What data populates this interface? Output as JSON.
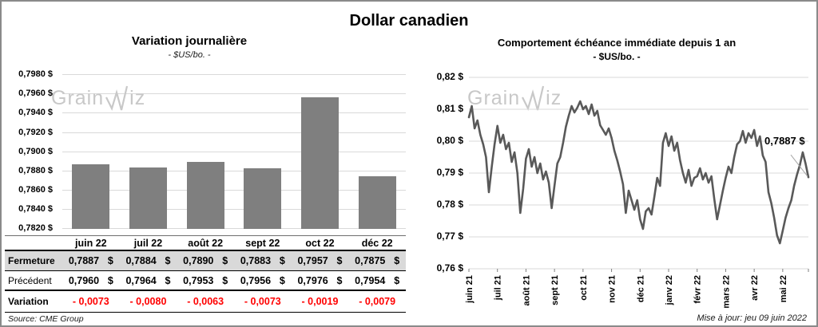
{
  "page": {
    "title": "Dollar canadien",
    "source": "Source: CME Group",
    "updated": "Mise à jour: jeu 09 juin 2022",
    "watermark": {
      "pre": "Grain",
      "post": "iz"
    }
  },
  "chart_data": [
    {
      "id": "variation-journaliere",
      "type": "bar",
      "title": "Variation journalière",
      "subtitle": "- $US/bo. -",
      "ylabel": "$US/bo.",
      "categories": [
        "juin 22",
        "juil 22",
        "août 22",
        "sept 22",
        "oct 22",
        "déc 22"
      ],
      "values": [
        0.7887,
        0.7884,
        0.789,
        0.7883,
        0.7957,
        0.7875
      ],
      "ylim": [
        0.782,
        0.79835
      ],
      "grid": true,
      "y_ticks": [
        {
          "v": 0.798,
          "label": "0,7980 $"
        },
        {
          "v": 0.796,
          "label": "0,7960 $"
        },
        {
          "v": 0.794,
          "label": "0,7940 $"
        },
        {
          "v": 0.792,
          "label": "0,7920 $"
        },
        {
          "v": 0.79,
          "label": "0,7900 $"
        },
        {
          "v": 0.788,
          "label": "0,7880 $"
        },
        {
          "v": 0.786,
          "label": "0,7860 $"
        },
        {
          "v": 0.784,
          "label": "0,7840 $"
        },
        {
          "v": 0.782,
          "label": "0,7820 $"
        }
      ],
      "bar_color": "#7f7f7f",
      "grid_color": "#d9d9d9"
    },
    {
      "id": "comportement-echeance",
      "type": "line",
      "title": "Comportement échéance immédiate depuis 1 an",
      "subtitle": "- $US/bo. -",
      "ylabel": "$US/bo.",
      "ylim": [
        0.76,
        0.8225
      ],
      "grid": true,
      "y_ticks": [
        {
          "v": 0.82,
          "label": "0,82 $"
        },
        {
          "v": 0.81,
          "label": "0,81 $"
        },
        {
          "v": 0.8,
          "label": "0,80 $"
        },
        {
          "v": 0.79,
          "label": "0,79 $"
        },
        {
          "v": 0.78,
          "label": "0,78 $"
        },
        {
          "v": 0.77,
          "label": "0,77 $"
        },
        {
          "v": 0.76,
          "label": "0,76 $"
        }
      ],
      "x_ticks": [
        "juin 21",
        "juil 21",
        "août 21",
        "sept 21",
        "oct 21",
        "nov 21",
        "déc 21",
        "janv 22",
        "févr 22",
        "mars 22",
        "avr 22",
        "mai 22"
      ],
      "points_per_month": 10,
      "values": [
        0.8075,
        0.811,
        0.804,
        0.8065,
        0.802,
        0.799,
        0.795,
        0.784,
        0.792,
        0.799,
        0.8048,
        0.7995,
        0.802,
        0.7975,
        0.7995,
        0.7935,
        0.7965,
        0.79,
        0.7775,
        0.785,
        0.7945,
        0.7975,
        0.792,
        0.795,
        0.79,
        0.793,
        0.788,
        0.7905,
        0.787,
        0.779,
        0.786,
        0.793,
        0.795,
        0.7995,
        0.8045,
        0.808,
        0.811,
        0.809,
        0.8105,
        0.8125,
        0.81,
        0.811,
        0.8085,
        0.8115,
        0.808,
        0.8095,
        0.805,
        0.8035,
        0.802,
        0.804,
        0.801,
        0.797,
        0.794,
        0.7905,
        0.7865,
        0.7775,
        0.7845,
        0.7815,
        0.7785,
        0.7815,
        0.7755,
        0.7725,
        0.778,
        0.779,
        0.777,
        0.7825,
        0.7885,
        0.786,
        0.7995,
        0.8025,
        0.7985,
        0.8015,
        0.797,
        0.7995,
        0.794,
        0.79,
        0.787,
        0.791,
        0.786,
        0.7885,
        0.789,
        0.7915,
        0.788,
        0.79,
        0.787,
        0.789,
        0.782,
        0.7755,
        0.78,
        0.7845,
        0.7885,
        0.792,
        0.79,
        0.795,
        0.799,
        0.8,
        0.8032,
        0.7995,
        0.8025,
        0.801,
        0.8035,
        0.7985,
        0.8015,
        0.7955,
        0.7935,
        0.784,
        0.7805,
        0.776,
        0.7705,
        0.768,
        0.772,
        0.776,
        0.779,
        0.7815,
        0.786,
        0.7895,
        0.7925,
        0.7965,
        0.793,
        0.7887
      ],
      "last_value_label": "0,7887 $",
      "line_color": "#595959",
      "grid_color": "#d9d9d9",
      "callout_color": "#a6a6a6"
    }
  ],
  "table": {
    "columns": [
      "juin 22",
      "juil 22",
      "août 22",
      "sept 22",
      "oct 22",
      "déc 22"
    ],
    "currency": "$",
    "rows": [
      {
        "label": "Fermeture",
        "values": [
          "0,7887",
          "0,7884",
          "0,7890",
          "0,7883",
          "0,7957",
          "0,7875"
        ],
        "suffix": "$",
        "highlight": true,
        "bold_label": true,
        "negative": false
      },
      {
        "label": "Précédent",
        "values": [
          "0,7960",
          "0,7964",
          "0,7953",
          "0,7956",
          "0,7976",
          "0,7954"
        ],
        "suffix": "$",
        "highlight": false,
        "bold_label": false,
        "negative": false
      },
      {
        "label": "Variation",
        "values": [
          "- 0,0073",
          "- 0,0080",
          "- 0,0063",
          "- 0,0073",
          "- 0,0019",
          "- 0,0079"
        ],
        "suffix": "",
        "highlight": false,
        "bold_label": true,
        "negative": true
      }
    ],
    "negative_color": "#ff0000",
    "highlight_bg": "#d9d9d9"
  }
}
